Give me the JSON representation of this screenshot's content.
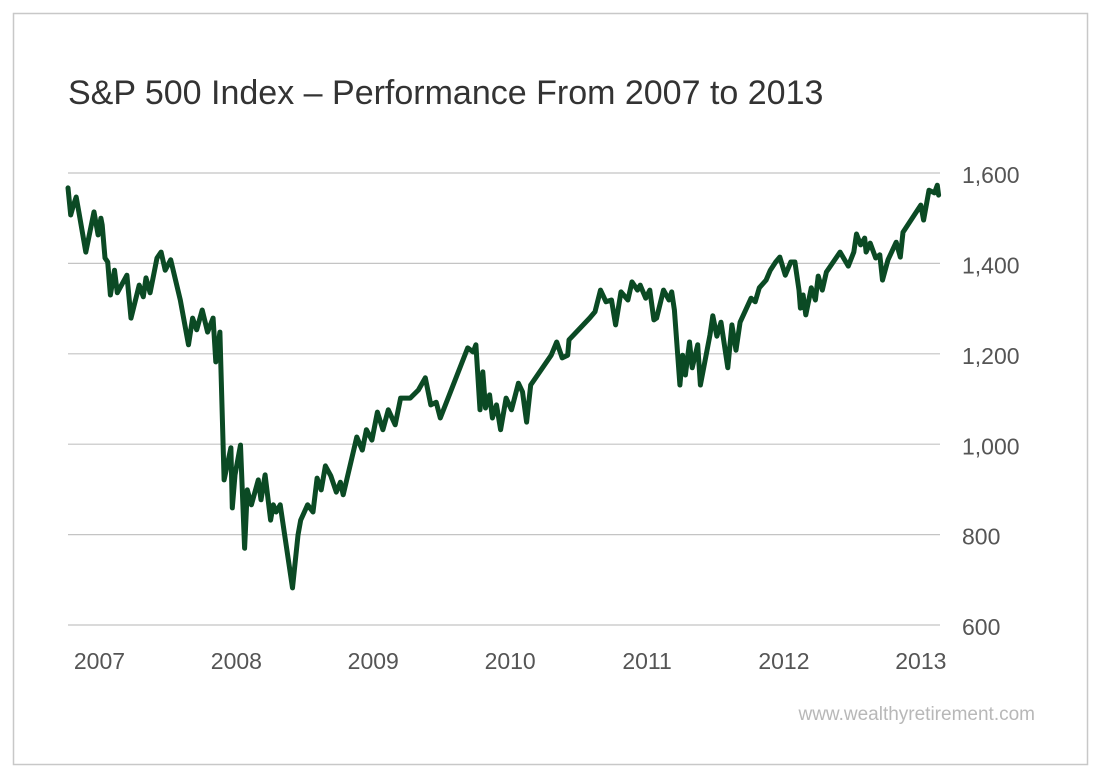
{
  "chart_data": {
    "type": "line",
    "title": "S&P 500 Index – Performance From 2007 to 2013",
    "source": "www.wealthyretirement.com",
    "color": "#0b4a24",
    "grid": true,
    "xlim": [
      2006.77,
      2013.14
    ],
    "xticks": [
      2007,
      2008,
      2009,
      2010,
      2011,
      2012,
      2013
    ],
    "ylim": [
      600,
      1600
    ],
    "yticks": [
      {
        "value": 1600,
        "label": "1,600"
      },
      {
        "value": 1400,
        "label": "1,400"
      },
      {
        "value": 1200,
        "label": "1,200"
      },
      {
        "value": 1000,
        "label": "1,000"
      },
      800,
      600
    ],
    "x": [
      2006.77,
      2006.79,
      2006.81,
      2006.83,
      2006.85,
      2006.9,
      2006.96,
      2006.99,
      2007.01,
      2007.02,
      2007.04,
      2007.06,
      2007.08,
      2007.11,
      2007.13,
      2007.2,
      2007.23,
      2007.29,
      2007.32,
      2007.34,
      2007.37,
      2007.42,
      2007.45,
      2007.48,
      2007.52,
      2007.59,
      2007.65,
      2007.68,
      2007.71,
      2007.75,
      2007.79,
      2007.83,
      2007.85,
      2007.88,
      2007.91,
      2007.96,
      2007.97,
      2007.99,
      2008.03,
      2008.06,
      2008.08,
      2008.11,
      2008.16,
      2008.18,
      2008.21,
      2008.25,
      2008.27,
      2008.29,
      2008.32,
      2008.41,
      2008.45,
      2008.47,
      2008.52,
      2008.56,
      2008.59,
      2008.62,
      2008.65,
      2008.69,
      2008.73,
      2008.76,
      2008.78,
      2008.88,
      2008.92,
      2008.95,
      2008.99,
      2009.03,
      2009.07,
      2009.11,
      2009.16,
      2009.2,
      2009.27,
      2009.33,
      2009.38,
      2009.42,
      2009.46,
      2009.49,
      2009.69,
      2009.73,
      2009.75,
      2009.78,
      2009.8,
      2009.82,
      2009.85,
      2009.87,
      2009.9,
      2009.93,
      2009.97,
      2010.01,
      2010.06,
      2010.09,
      2010.12,
      2010.15,
      2010.3,
      2010.34,
      2010.38,
      2010.42,
      2010.43,
      2010.58,
      2010.62,
      2010.66,
      2010.7,
      2010.74,
      2010.77,
      2010.81,
      2010.86,
      2010.89,
      2010.93,
      2010.95,
      2010.99,
      2011.02,
      2011.05,
      2011.07,
      2011.12,
      2011.16,
      2011.18,
      2011.2,
      2011.24,
      2011.26,
      2011.28,
      2011.31,
      2011.33,
      2011.37,
      2011.39,
      2011.46,
      2011.48,
      2011.51,
      2011.54,
      2011.59,
      2011.62,
      2011.65,
      2011.68,
      2011.76,
      2011.79,
      2011.82,
      2011.87,
      2011.9,
      2011.94,
      2011.97,
      2012.01,
      2012.05,
      2012.08,
      2012.11,
      2012.12,
      2012.14,
      2012.16,
      2012.2,
      2012.23,
      2012.25,
      2012.28,
      2012.31,
      2012.38,
      2012.41,
      2012.47,
      2012.51,
      2012.53,
      2012.56,
      2012.59,
      2012.6,
      2012.63,
      2012.67,
      2012.7,
      2012.72,
      2012.76,
      2012.82,
      2012.85,
      2012.87,
      2013.0,
      2013.02,
      2013.06,
      2013.1,
      2013.12,
      2013.13
    ],
    "values": [
      1567,
      1507,
      1529,
      1547,
      1512,
      1425,
      1514,
      1463,
      1500,
      1485,
      1412,
      1403,
      1330,
      1385,
      1335,
      1374,
      1279,
      1352,
      1326,
      1368,
      1335,
      1412,
      1425,
      1385,
      1408,
      1319,
      1220,
      1279,
      1253,
      1297,
      1248,
      1279,
      1182,
      1248,
      921,
      992,
      859,
      932,
      998,
      770,
      899,
      866,
      921,
      877,
      932,
      832,
      866,
      850,
      866,
      682,
      799,
      832,
      866,
      850,
      925,
      899,
      952,
      930,
      894,
      916,
      888,
      1016,
      987,
      1032,
      1009,
      1071,
      1032,
      1076,
      1043,
      1102,
      1102,
      1120,
      1147,
      1087,
      1093,
      1058,
      1213,
      1204,
      1220,
      1076,
      1160,
      1080,
      1109,
      1058,
      1087,
      1032,
      1102,
      1076,
      1135,
      1116,
      1049,
      1131,
      1197,
      1226,
      1191,
      1197,
      1231,
      1279,
      1293,
      1341,
      1315,
      1319,
      1264,
      1337,
      1319,
      1359,
      1341,
      1352,
      1323,
      1341,
      1275,
      1279,
      1341,
      1319,
      1337,
      1297,
      1131,
      1197,
      1153,
      1226,
      1169,
      1220,
      1131,
      1242,
      1284,
      1239,
      1270,
      1169,
      1264,
      1208,
      1270,
      1323,
      1315,
      1346,
      1363,
      1385,
      1403,
      1414,
      1374,
      1403,
      1403,
      1341,
      1301,
      1330,
      1286,
      1346,
      1319,
      1372,
      1341,
      1381,
      1412,
      1425,
      1394,
      1425,
      1465,
      1441,
      1456,
      1425,
      1445,
      1412,
      1419,
      1363,
      1408,
      1447,
      1414,
      1469,
      1529,
      1496,
      1562,
      1556,
      1573,
      1551
    ]
  }
}
